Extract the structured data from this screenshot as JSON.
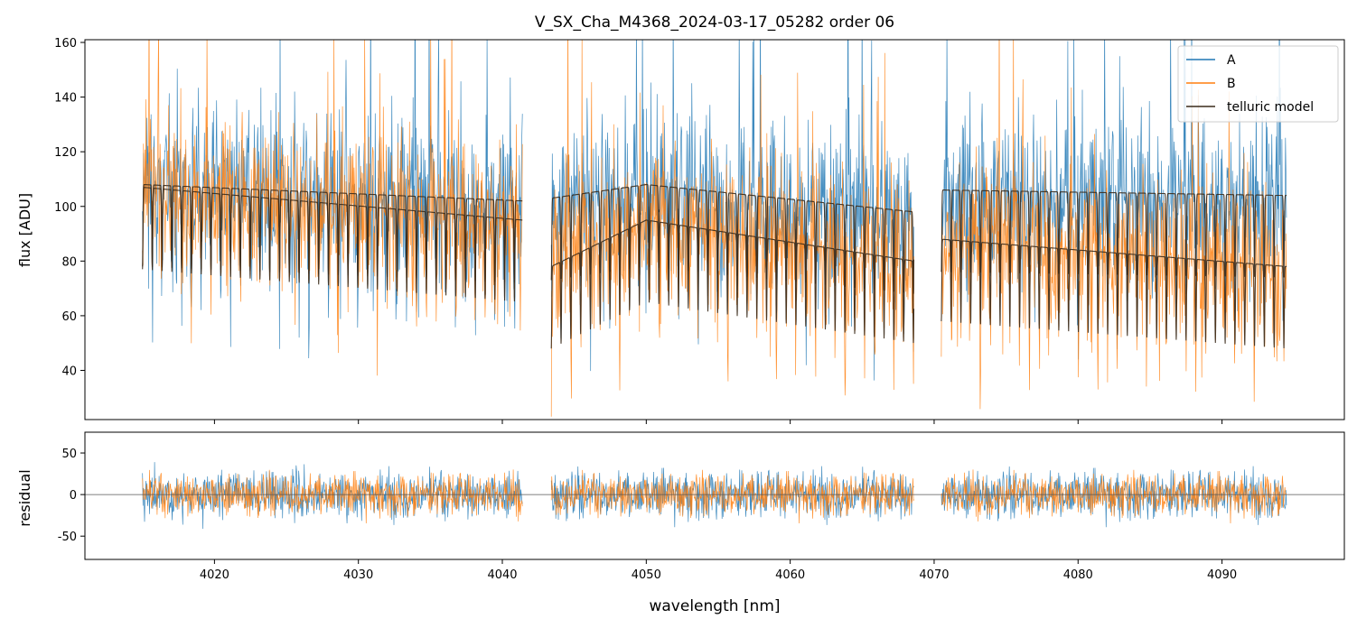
{
  "chart_data": [
    {
      "type": "line",
      "panel": "main",
      "title": "V_SX_Cha_M4368_2024-03-17_05282  order 06",
      "xlabel": "",
      "ylabel": "flux [ADU]",
      "xlim": [
        4011,
        4098.5
      ],
      "ylim": [
        22,
        161
      ],
      "xticks": [
        4020,
        4030,
        4040,
        4050,
        4060,
        4070,
        4080,
        4090
      ],
      "yticks": [
        40,
        60,
        80,
        100,
        120,
        140,
        160
      ],
      "legend": {
        "placement": "top-right",
        "entries": [
          "A",
          "B",
          "telluric model"
        ]
      },
      "segments": [
        {
          "x_range": [
            4015.0,
            4041.4
          ]
        },
        {
          "x_range": [
            4043.4,
            4068.6
          ]
        },
        {
          "x_range": [
            4070.5,
            4094.5
          ]
        }
      ],
      "series": [
        {
          "name": "A",
          "color": "#1f77b4",
          "typical_level": 95,
          "scatter": 30,
          "note": "noisy observed spectrum, nod position A"
        },
        {
          "name": "B",
          "color": "#ff7f0e",
          "typical_level": 100,
          "scatter": 28,
          "note": "noisy observed spectrum, nod position B"
        },
        {
          "name": "telluric model",
          "color": "#3a2a1a",
          "continuum_A": [
            {
              "x": 4015.0,
              "y": 108
            },
            {
              "x": 4041.4,
              "y": 102
            },
            {
              "x": 4043.4,
              "y": 103
            },
            {
              "x": 4050.0,
              "y": 108
            },
            {
              "x": 4068.6,
              "y": 98
            },
            {
              "x": 4070.5,
              "y": 106
            },
            {
              "x": 4094.5,
              "y": 104
            }
          ],
          "continuum_B": [
            {
              "x": 4015.0,
              "y": 107
            },
            {
              "x": 4041.4,
              "y": 95
            },
            {
              "x": 4043.4,
              "y": 78
            },
            {
              "x": 4050.0,
              "y": 95
            },
            {
              "x": 4068.6,
              "y": 80
            },
            {
              "x": 4070.5,
              "y": 88
            },
            {
              "x": 4094.5,
              "y": 78
            }
          ],
          "line_spacing_nm": 0.68,
          "line_depth": 30
        }
      ]
    },
    {
      "type": "line",
      "panel": "residual",
      "xlabel": "wavelength [nm]",
      "ylabel": "residual",
      "xlim": [
        4011,
        4098.5
      ],
      "ylim": [
        -78,
        75
      ],
      "xticks": [
        4020,
        4030,
        4040,
        4050,
        4060,
        4070,
        4080,
        4090
      ],
      "yticks": [
        -50,
        0,
        50
      ],
      "zero_line": true,
      "series": [
        {
          "name": "A",
          "color": "#1f77b4",
          "scatter": 25
        },
        {
          "name": "B",
          "color": "#ff7f0e",
          "scatter": 22
        }
      ]
    }
  ]
}
